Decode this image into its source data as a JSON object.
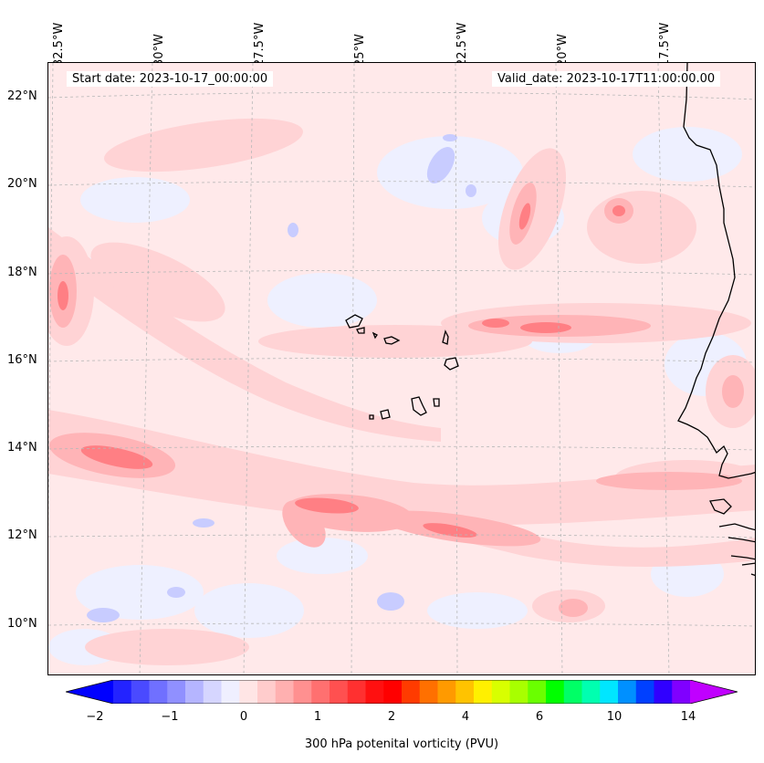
{
  "map": {
    "start_date": "Start date: 2023-10-17_00:00:00",
    "valid_date": "Valid_date: 2023-10-17T11:00:00.00",
    "lon_labels": [
      "32.5°W",
      "30°W",
      "27.5°W",
      "25°W",
      "22.5°W",
      "20°W",
      "17.5°W"
    ],
    "lat_labels": [
      "22°N",
      "20°N",
      "18°N",
      "16°N",
      "14°N",
      "12°N",
      "10°N"
    ],
    "extent": {
      "lon": [
        -32.6,
        -14.8
      ],
      "lat": [
        8.9,
        22.8
      ]
    },
    "field": "300 hPa potenital vorticity (PVU)"
  },
  "colorbar": {
    "label": "300 hPa potenital vorticity (PVU)",
    "tick_labels": [
      "−2",
      "−1",
      "0",
      "1",
      "2",
      "4",
      "6",
      "10",
      "14"
    ],
    "colors": [
      "#0000ff",
      "#2323ff",
      "#4a4aff",
      "#7070ff",
      "#9090ff",
      "#b5b5ff",
      "#d6d6ff",
      "#efefff",
      "#ffe5e5",
      "#ffcccc",
      "#ffb0b0",
      "#ff9090",
      "#ff7070",
      "#ff5050",
      "#ff3030",
      "#ff1010",
      "#ff0000",
      "#ff3b00",
      "#ff7000",
      "#ff9a00",
      "#ffc300",
      "#fff000",
      "#d8ff00",
      "#a8ff00",
      "#6aff00",
      "#00ff00",
      "#00ff66",
      "#00ffb0",
      "#00e6ff",
      "#0090ff",
      "#0040ff",
      "#3000ff",
      "#8000ff",
      "#c000ff"
    ]
  }
}
